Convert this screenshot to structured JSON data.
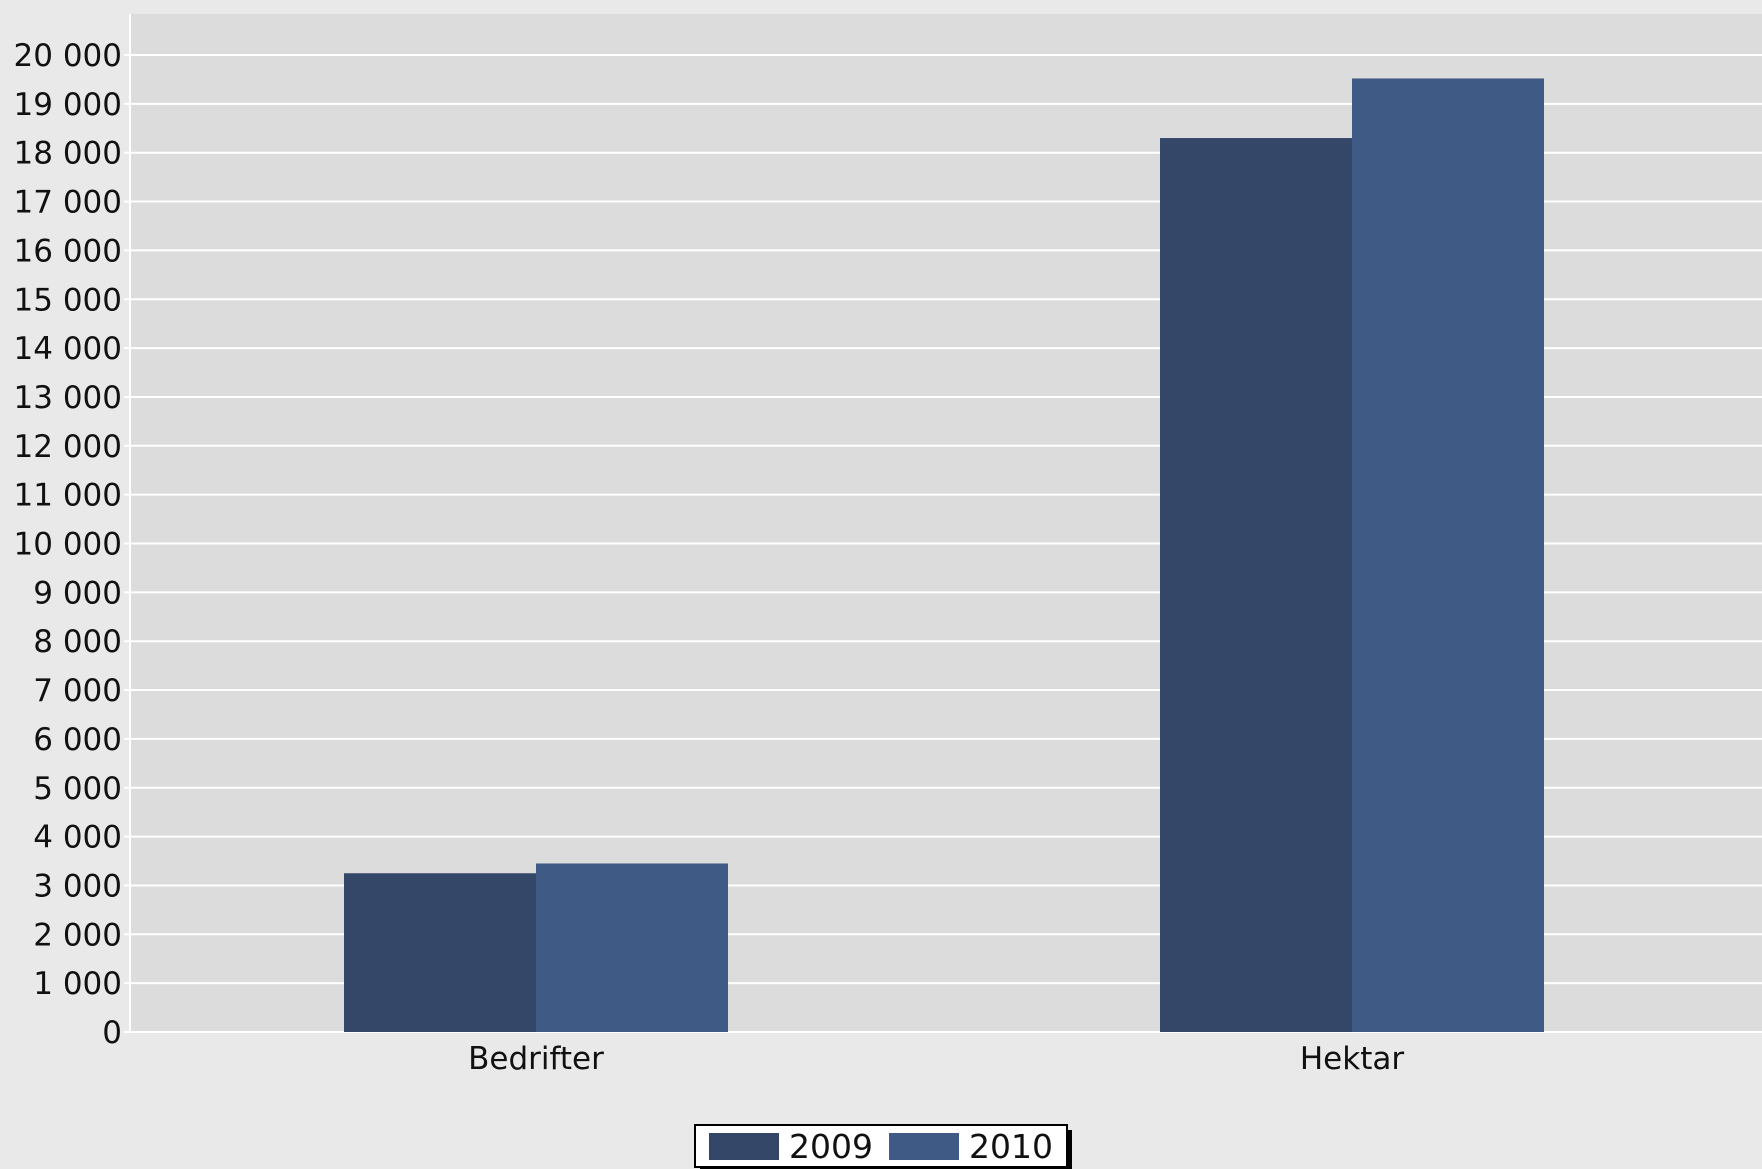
{
  "chart_data": {
    "type": "bar",
    "categories": [
      "Bedrifter",
      "Hektar"
    ],
    "series": [
      {
        "name": "2009",
        "values": [
          3250,
          18300
        ]
      },
      {
        "name": "2010",
        "values": [
          3450,
          19520
        ]
      }
    ],
    "title": "",
    "xlabel": "",
    "ylabel": "",
    "ylim": [
      0,
      20000
    ],
    "yticks": [
      0,
      1000,
      2000,
      3000,
      4000,
      5000,
      6000,
      7000,
      8000,
      9000,
      10000,
      11000,
      12000,
      13000,
      14000,
      15000,
      16000,
      17000,
      18000,
      19000,
      20000
    ],
    "ytick_labels": [
      "0",
      "1 000",
      "2 000",
      "3 000",
      "4 000",
      "5 000",
      "6 000",
      "7 000",
      "8 000",
      "9 000",
      "10 000",
      "11 000",
      "12 000",
      "13 000",
      "14 000",
      "15 000",
      "16 000",
      "17 000",
      "18 000",
      "19 000",
      "20 000"
    ],
    "grid": true,
    "legend_position": "bottom-center",
    "colors": {
      "2009": "#344769",
      "2010": "#405a86",
      "plot_background": "#dcdcdc",
      "page_background": "#e9e9e9",
      "gridline": "#ffffff"
    }
  }
}
